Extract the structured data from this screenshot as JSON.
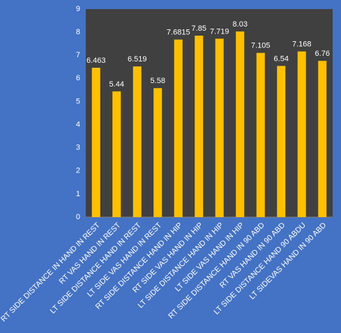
{
  "chart_data": {
    "type": "bar",
    "categories": [
      "RT SIDE DISTANCE IN HAND IN REST",
      "RT VAS HAND IN REST",
      "LT SIDE DISTANCE HAND IN REST",
      "LT SIDE VAS HAND IN REST",
      "RT SIDE DISTANCE HAND IN HIP",
      "RT SIDE VAS HAND IN HIP",
      "LT SIDE DISTANCE HAND IN HIP",
      "LT SIDE VAS HAND IN HIP",
      "RT SIDE DISTANCE HAND IN 90 ABD",
      "RT VAS HAND IN 90 ABD",
      "LT SIDE DISTANCE HAND 90 ABDU",
      "LT SIDEVAS HAND IN 90 ABD"
    ],
    "values": [
      6.463,
      5.44,
      6.519,
      5.58,
      7.6815,
      7.85,
      7.719,
      8.03,
      7.105,
      6.54,
      7.168,
      6.76
    ],
    "color": "#ffc000",
    "ylim": [
      0,
      9
    ],
    "yticks": [
      0,
      1,
      2,
      3,
      4,
      5,
      6,
      7,
      8,
      9
    ],
    "grid": false
  }
}
